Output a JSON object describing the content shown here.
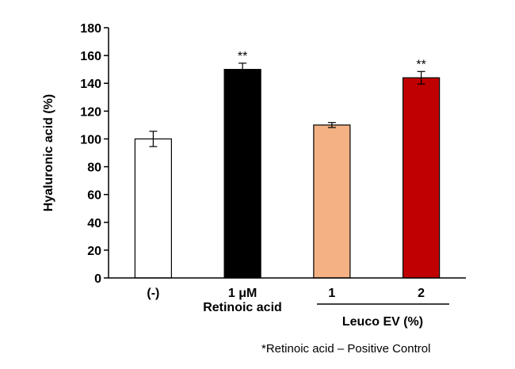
{
  "chart_data": {
    "type": "bar",
    "title": "",
    "xlabel": "",
    "ylabel": "Hyaluronic acid (%)",
    "ylim": [
      0,
      180
    ],
    "yticks": [
      0,
      20,
      40,
      60,
      80,
      100,
      120,
      140,
      160,
      180
    ],
    "grid": false,
    "categories": [
      "(-)",
      "1 μM",
      "1",
      "2"
    ],
    "values": [
      100,
      150,
      110,
      144
    ],
    "errors": [
      5.5,
      4.5,
      1.8,
      4.5
    ],
    "significance": [
      "",
      "**",
      "",
      "**"
    ],
    "colors": [
      "#ffffff",
      "#000000",
      "#f4b183",
      "#c00000"
    ],
    "group_labels": {
      "retinoic": "Retinoic acid",
      "leuco": "Leuco EV (%)"
    }
  },
  "footnote": "*Retinoic acid – Positive Control"
}
